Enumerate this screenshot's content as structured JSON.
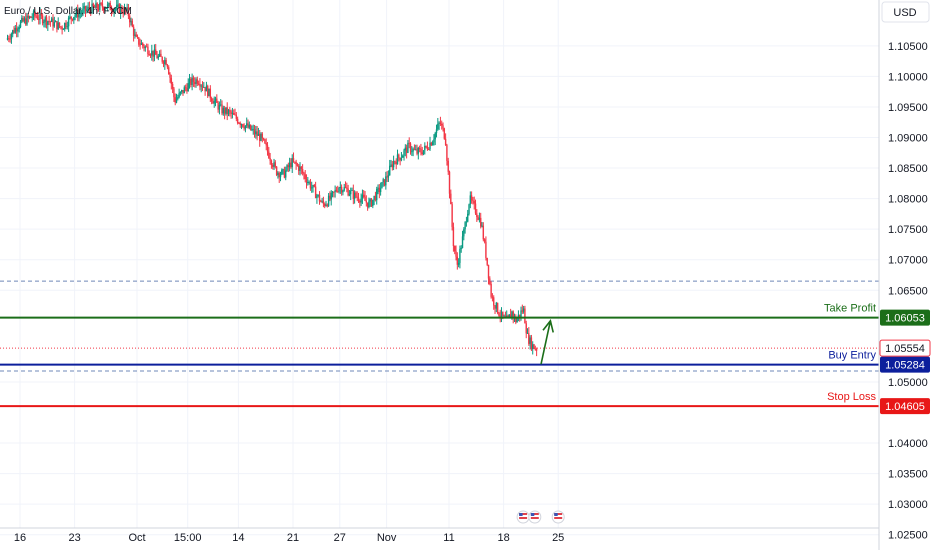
{
  "header": {
    "symbol": "Euro / U.S. Dollar, 4h, FXCM"
  },
  "currency_button": "USD",
  "chart_data": {
    "type": "candlestick",
    "currency": "USD",
    "ylim": [
      1.0225,
      1.1125
    ],
    "y_ticks": [
      {
        "v": 1.105,
        "label": "1.10500"
      },
      {
        "v": 1.1,
        "label": "1.10000"
      },
      {
        "v": 1.095,
        "label": "1.09500"
      },
      {
        "v": 1.09,
        "label": "1.09000"
      },
      {
        "v": 1.085,
        "label": "1.08500"
      },
      {
        "v": 1.08,
        "label": "1.08000"
      },
      {
        "v": 1.075,
        "label": "1.07500"
      },
      {
        "v": 1.07,
        "label": "1.07000"
      },
      {
        "v": 1.065,
        "label": "1.06500"
      },
      {
        "v": 1.05,
        "label": "1.05000"
      },
      {
        "v": 1.04,
        "label": "1.04000"
      },
      {
        "v": 1.035,
        "label": "1.03500"
      },
      {
        "v": 1.03,
        "label": "1.03000"
      },
      {
        "v": 1.025,
        "label": "1.02500"
      }
    ],
    "x_ticks": [
      {
        "day": 0,
        "label": "16"
      },
      {
        "day": 7,
        "label": "23"
      },
      {
        "day": 15,
        "label": "Oct"
      },
      {
        "day": 21.5,
        "label": "15:00"
      },
      {
        "day": 28,
        "label": "14"
      },
      {
        "day": 35,
        "label": "21"
      },
      {
        "day": 41,
        "label": "27"
      },
      {
        "day": 47,
        "label": "Nov"
      },
      {
        "day": 55,
        "label": "11"
      },
      {
        "day": 62,
        "label": "18"
      },
      {
        "day": 69,
        "label": "25"
      }
    ],
    "price_path": [
      [
        -1.6,
        1.106
      ],
      [
        0,
        1.1085
      ],
      [
        2,
        1.11
      ],
      [
        4,
        1.109
      ],
      [
        5.5,
        1.108
      ],
      [
        7,
        1.11
      ],
      [
        9,
        1.111
      ],
      [
        11,
        1.1115
      ],
      [
        13,
        1.111
      ],
      [
        14,
        1.1105
      ],
      [
        15,
        1.106
      ],
      [
        16,
        1.105
      ],
      [
        17,
        1.104
      ],
      [
        18,
        1.103
      ],
      [
        19,
        1.1025
      ],
      [
        20,
        1.096
      ],
      [
        21,
        1.0975
      ],
      [
        22,
        1.099
      ],
      [
        23,
        1.0995
      ],
      [
        24,
        1.098
      ],
      [
        25,
        1.096
      ],
      [
        26,
        1.0945
      ],
      [
        27,
        1.094
      ],
      [
        28,
        1.093
      ],
      [
        29,
        1.092
      ],
      [
        30,
        1.091
      ],
      [
        31,
        1.09
      ],
      [
        32,
        1.0875
      ],
      [
        33,
        1.0845
      ],
      [
        34,
        1.084
      ],
      [
        35,
        1.086
      ],
      [
        36,
        1.085
      ],
      [
        37,
        1.083
      ],
      [
        38,
        1.081
      ],
      [
        39,
        1.079
      ],
      [
        40,
        1.08
      ],
      [
        41,
        1.082
      ],
      [
        42,
        1.0815
      ],
      [
        43,
        1.0805
      ],
      [
        44,
        1.08
      ],
      [
        45,
        1.079
      ],
      [
        46,
        1.081
      ],
      [
        47,
        1.083
      ],
      [
        48,
        1.086
      ],
      [
        49,
        1.087
      ],
      [
        50,
        1.0885
      ],
      [
        51,
        1.0875
      ],
      [
        52,
        1.088
      ],
      [
        53,
        1.0895
      ],
      [
        54,
        1.0925
      ],
      [
        54.7,
        1.09
      ],
      [
        55.2,
        1.082
      ],
      [
        55.7,
        1.073
      ],
      [
        56.2,
        1.069
      ],
      [
        57,
        1.074
      ],
      [
        57.8,
        1.08
      ],
      [
        58.6,
        1.078
      ],
      [
        59.3,
        1.076
      ],
      [
        60,
        1.07
      ],
      [
        60.6,
        1.064
      ],
      [
        61.3,
        1.062
      ],
      [
        62,
        1.0605
      ],
      [
        62.7,
        1.06
      ],
      [
        63.2,
        1.0615
      ],
      [
        63.7,
        1.06
      ],
      [
        64.2,
        1.061
      ],
      [
        64.7,
        1.062
      ],
      [
        65.2,
        1.0575
      ],
      [
        65.8,
        1.056
      ],
      [
        66.3,
        1.0555
      ]
    ],
    "levels": [
      {
        "name": "Take Profit",
        "price": "1.06053",
        "value": 1.06053,
        "color": "#1b6e19",
        "style": "solid"
      },
      {
        "name": "Buy Entry",
        "price": "1.05284",
        "value": 1.05284,
        "color": "#0c1f9c",
        "style": "solid"
      },
      {
        "name": "Stop Loss",
        "price": "1.04605",
        "value": 1.04605,
        "color": "#e81717",
        "style": "solid"
      }
    ],
    "current_price": {
      "price": "1.05554",
      "value": 1.05554,
      "color": "#f23645"
    },
    "dashed_lines": [
      1.0665,
      1.0518
    ],
    "arrow": {
      "from": [
        66.8,
        1.0529
      ],
      "to": [
        68,
        1.06
      ],
      "color": "#1b6e19"
    },
    "event_icons_days": [
      64.5,
      66.0,
      69.0
    ]
  }
}
